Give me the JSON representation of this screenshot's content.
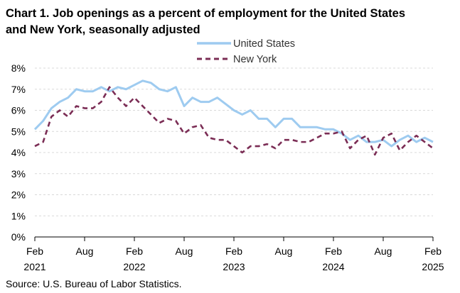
{
  "chart_data": {
    "type": "line",
    "title_lines": [
      "Chart 1. Job openings as a percent of employment for the United States",
      "and New York, seasonally adjusted"
    ],
    "source": "Source: U.S. Bureau of Labor Statistics.",
    "xlabel": "",
    "ylabel": "",
    "ylim": [
      0,
      8
    ],
    "y_ticks": [
      "0%",
      "1%",
      "2%",
      "3%",
      "4%",
      "5%",
      "6%",
      "7%",
      "8%"
    ],
    "x_ticks": [
      {
        "month": "Feb",
        "year": "2021",
        "index": 0
      },
      {
        "month": "Aug",
        "year": "",
        "index": 6
      },
      {
        "month": "Feb",
        "year": "2022",
        "index": 12
      },
      {
        "month": "Aug",
        "year": "",
        "index": 18
      },
      {
        "month": "Feb",
        "year": "2023",
        "index": 24
      },
      {
        "month": "Aug",
        "year": "",
        "index": 30
      },
      {
        "month": "Feb",
        "year": "2024",
        "index": 36
      },
      {
        "month": "Aug",
        "year": "",
        "index": 42
      },
      {
        "month": "Feb",
        "year": "2025",
        "index": 48
      }
    ],
    "grid": true,
    "legend_position": "top-right",
    "x_range": [
      "Feb 2021",
      "Feb 2025"
    ],
    "series": [
      {
        "name": "United States",
        "color": "#9ecbf0",
        "dash": "solid",
        "values": [
          5.1,
          5.5,
          6.1,
          6.4,
          6.6,
          7.0,
          6.9,
          6.9,
          7.1,
          6.9,
          7.1,
          7.0,
          7.2,
          7.4,
          7.3,
          7.0,
          6.9,
          7.1,
          6.2,
          6.6,
          6.4,
          6.4,
          6.6,
          6.3,
          6.0,
          5.8,
          6.0,
          5.6,
          5.6,
          5.2,
          5.6,
          5.6,
          5.2,
          5.2,
          5.2,
          5.1,
          5.1,
          4.9,
          4.6,
          4.8,
          4.5,
          4.5,
          4.6,
          4.3,
          4.6,
          4.8,
          4.5,
          4.7,
          4.5
        ]
      },
      {
        "name": "New York",
        "color": "#7b2d55",
        "dash": "dashed",
        "values": [
          4.3,
          4.5,
          5.7,
          6.0,
          5.7,
          6.2,
          6.1,
          6.1,
          6.4,
          7.1,
          6.6,
          6.2,
          6.6,
          6.2,
          5.8,
          5.4,
          5.6,
          5.5,
          4.9,
          5.2,
          5.3,
          4.7,
          4.6,
          4.6,
          4.3,
          4.0,
          4.3,
          4.3,
          4.4,
          4.2,
          4.6,
          4.6,
          4.5,
          4.5,
          4.7,
          4.9,
          4.9,
          5.0,
          4.2,
          4.6,
          4.8,
          3.9,
          4.7,
          4.9,
          4.1,
          4.5,
          4.8,
          4.5,
          4.2
        ]
      }
    ]
  }
}
